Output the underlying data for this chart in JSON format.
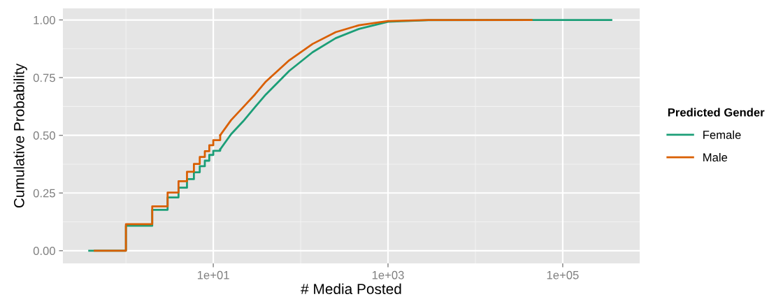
{
  "chart_data": {
    "type": "step",
    "xlabel": "# Media Posted",
    "ylabel": "Cumulative Probability",
    "legend_title": "Predicted Gender",
    "log": "x",
    "grid": true,
    "legend": "right",
    "line_style": "solid",
    "marker": "none",
    "xlim": [
      0.19,
      760000
    ],
    "ylim": [
      -0.055,
      1.05
    ],
    "xticks": [
      {
        "value": 10,
        "label": "1e+01"
      },
      {
        "value": 1000,
        "label": "1e+03"
      },
      {
        "value": 100000,
        "label": "1e+05"
      }
    ],
    "yticks": [
      {
        "value": 0,
        "label": "0.00"
      },
      {
        "value": 0.25,
        "label": "0.25"
      },
      {
        "value": 0.5,
        "label": "0.50"
      },
      {
        "value": 0.75,
        "label": "0.75"
      },
      {
        "value": 1,
        "label": "1.00"
      }
    ],
    "series": [
      {
        "name": "Female",
        "color": "#1b9e77",
        "x": [
          0.38,
          1,
          2,
          3,
          4,
          5,
          6,
          7,
          8,
          9,
          10,
          12
        ],
        "values": [
          0,
          0.108,
          0.177,
          0.231,
          0.273,
          0.31,
          0.34,
          0.366,
          0.39,
          0.415,
          0.433,
          0.439
        ]
      },
      {
        "name": "Male",
        "color": "#d95f02",
        "x": [
          0.44,
          1,
          2,
          3,
          4,
          5,
          6,
          7,
          8,
          9,
          10,
          12
        ],
        "values": [
          0,
          0.115,
          0.192,
          0.252,
          0.301,
          0.342,
          0.376,
          0.406,
          0.431,
          0.457,
          0.479,
          0.5
        ]
      },
      {
        "type": "line",
        "color": "#1b9e77",
        "x": [
          12,
          16,
          22,
          30,
          40,
          74,
          137,
          252,
          466,
          1000,
          2900,
          360000
        ],
        "values": [
          0.439,
          0.505,
          0.561,
          0.622,
          0.677,
          0.779,
          0.86,
          0.921,
          0.961,
          0.992,
          0.999,
          1
        ]
      },
      {
        "type": "line",
        "color": "#d95f02",
        "x": [
          12,
          16,
          22,
          30,
          40,
          74,
          137,
          252,
          466,
          1000,
          2900,
          44000
        ],
        "values": [
          0.5,
          0.566,
          0.622,
          0.677,
          0.733,
          0.825,
          0.896,
          0.947,
          0.977,
          0.995,
          1,
          1
        ]
      }
    ]
  }
}
